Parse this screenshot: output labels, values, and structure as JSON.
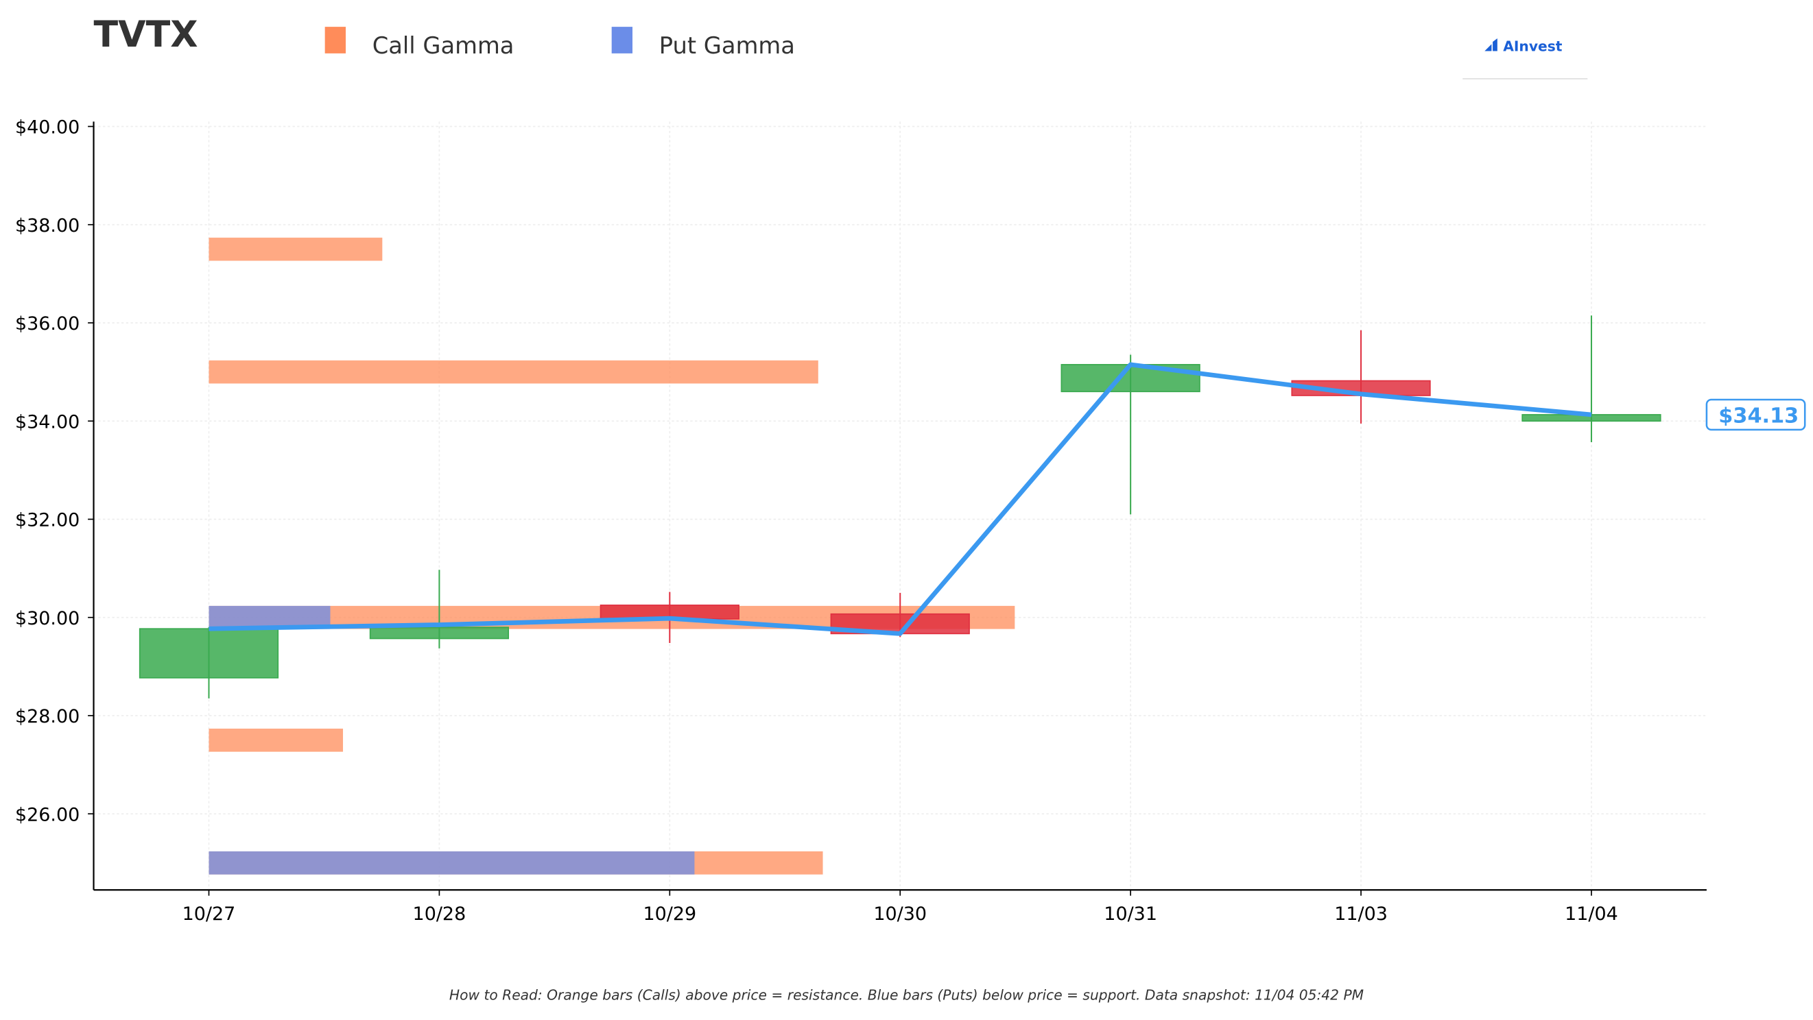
{
  "chart_data": {
    "type": "candlestick",
    "title": "TVTX",
    "brand": "AInvest",
    "categories": [
      "10/27",
      "10/28",
      "10/29",
      "10/30",
      "10/31",
      "11/03",
      "11/04"
    ],
    "open": [
      28.77,
      29.57,
      30.25,
      30.07,
      34.6,
      34.82,
      34.0
    ],
    "high": [
      29.8,
      30.97,
      30.52,
      30.5,
      35.35,
      35.85,
      36.15
    ],
    "low": [
      28.35,
      29.37,
      29.48,
      29.6,
      32.1,
      33.95,
      33.57
    ],
    "close": [
      29.77,
      29.8,
      29.97,
      29.67,
      35.15,
      34.52,
      34.13
    ],
    "up_color": "#3aaa4f",
    "down_color": "#e03040",
    "price_line": {
      "values": [
        29.77,
        29.85,
        29.98,
        29.67,
        35.15,
        34.55,
        34.13
      ],
      "color": "#3b99f0"
    },
    "last_price": {
      "value": 34.13,
      "label": "$34.13"
    },
    "gamma": {
      "strikes": [
        37.5,
        35.0,
        30.0,
        27.5,
        25.0
      ],
      "series": [
        {
          "name": "Call Gamma",
          "color": "#ff8c5a",
          "values": [
            150,
            527,
            697,
            116,
            531
          ]
        },
        {
          "name": "Put Gamma",
          "color": "#6b8de8",
          "values": [
            null,
            null,
            105,
            null,
            420
          ]
        }
      ]
    },
    "ylim": [
      24.45,
      40.1
    ],
    "yticks": [
      {
        "value": 26,
        "label": "$26.00"
      },
      {
        "value": 28,
        "label": "$28.00"
      },
      {
        "value": 30,
        "label": "$30.00"
      },
      {
        "value": 32,
        "label": "$32.00"
      },
      {
        "value": 34,
        "label": "$34.00"
      },
      {
        "value": 36,
        "label": "$36.00"
      },
      {
        "value": 38,
        "label": "$38.00"
      },
      {
        "value": 40,
        "label": "$40.00"
      }
    ],
    "grid": true,
    "footnote": "How to Read: Orange bars (Calls) above price = resistance. Blue bars (Puts) below price = support. Data snapshot: 11/04 05:42 PM"
  }
}
